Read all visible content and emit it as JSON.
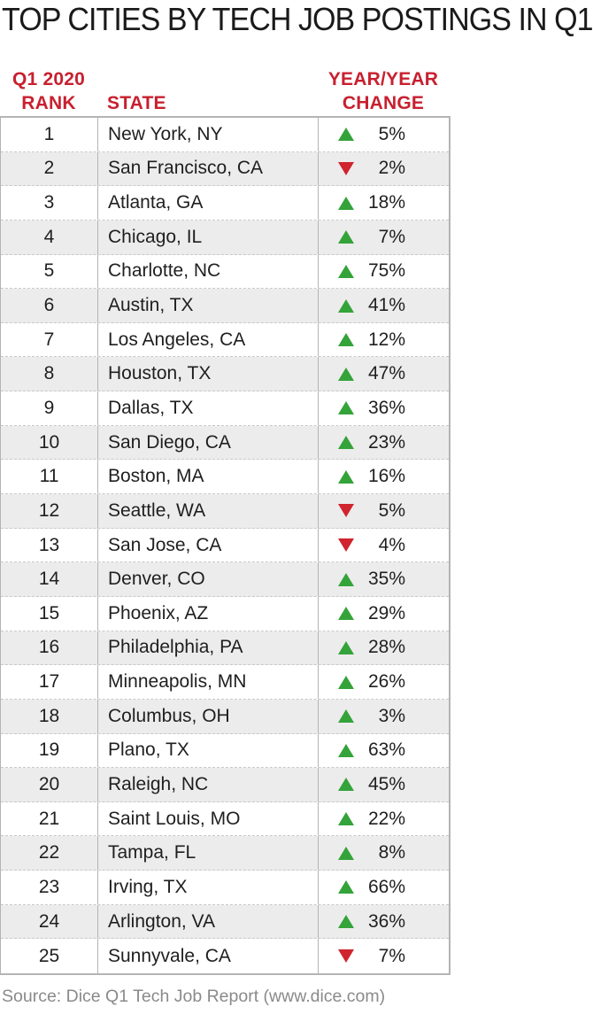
{
  "title": "TOP CITIES BY TECH JOB POSTINGS IN Q1",
  "headers": {
    "rank_line1": "Q1 2020",
    "rank_line2": "RANK",
    "state": "STATE",
    "change_line1": "YEAR/YEAR",
    "change_line2": "CHANGE"
  },
  "colors": {
    "header_red": "#c8202f",
    "up_green": "#34a33a",
    "down_red": "#d0242e",
    "alt_row": "#ececec"
  },
  "chart_data": {
    "type": "table",
    "title": "TOP CITIES BY TECH JOB POSTINGS IN Q1",
    "columns": [
      "Q1 2020 RANK",
      "STATE",
      "YEAR/YEAR CHANGE"
    ],
    "rows": [
      {
        "rank": "1",
        "city": "New York, NY",
        "direction": "up",
        "change": "5%"
      },
      {
        "rank": "2",
        "city": "San Francisco, CA",
        "direction": "down",
        "change": "2%"
      },
      {
        "rank": "3",
        "city": "Atlanta, GA",
        "direction": "up",
        "change": "18%"
      },
      {
        "rank": "4",
        "city": "Chicago, IL",
        "direction": "up",
        "change": "7%"
      },
      {
        "rank": "5",
        "city": "Charlotte, NC",
        "direction": "up",
        "change": "75%"
      },
      {
        "rank": "6",
        "city": "Austin, TX",
        "direction": "up",
        "change": "41%"
      },
      {
        "rank": "7",
        "city": "Los Angeles, CA",
        "direction": "up",
        "change": "12%"
      },
      {
        "rank": "8",
        "city": "Houston, TX",
        "direction": "up",
        "change": "47%"
      },
      {
        "rank": "9",
        "city": "Dallas, TX",
        "direction": "up",
        "change": "36%"
      },
      {
        "rank": "10",
        "city": "San Diego, CA",
        "direction": "up",
        "change": "23%"
      },
      {
        "rank": "11",
        "city": "Boston, MA",
        "direction": "up",
        "change": "16%"
      },
      {
        "rank": "12",
        "city": "Seattle, WA",
        "direction": "down",
        "change": "5%"
      },
      {
        "rank": "13",
        "city": "San Jose, CA",
        "direction": "down",
        "change": "4%"
      },
      {
        "rank": "14",
        "city": "Denver, CO",
        "direction": "up",
        "change": "35%"
      },
      {
        "rank": "15",
        "city": "Phoenix, AZ",
        "direction": "up",
        "change": "29%"
      },
      {
        "rank": "16",
        "city": "Philadelphia, PA",
        "direction": "up",
        "change": "28%"
      },
      {
        "rank": "17",
        "city": "Minneapolis, MN",
        "direction": "up",
        "change": "26%"
      },
      {
        "rank": "18",
        "city": "Columbus, OH",
        "direction": "up",
        "change": "3%"
      },
      {
        "rank": "19",
        "city": "Plano, TX",
        "direction": "up",
        "change": "63%"
      },
      {
        "rank": "20",
        "city": "Raleigh, NC",
        "direction": "up",
        "change": "45%"
      },
      {
        "rank": "21",
        "city": "Saint Louis, MO",
        "direction": "up",
        "change": "22%"
      },
      {
        "rank": "22",
        "city": "Tampa, FL",
        "direction": "up",
        "change": "8%"
      },
      {
        "rank": "23",
        "city": "Irving, TX",
        "direction": "up",
        "change": "66%"
      },
      {
        "rank": "24",
        "city": "Arlington, VA",
        "direction": "up",
        "change": "36%"
      },
      {
        "rank": "25",
        "city": "Sunnyvale, CA",
        "direction": "down",
        "change": "7%"
      }
    ]
  },
  "source": "Source: Dice Q1 Tech Job Report (www.dice.com)"
}
